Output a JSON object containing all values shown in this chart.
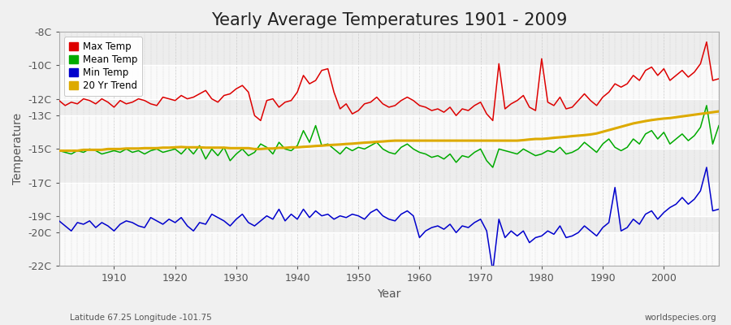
{
  "title": "Yearly Average Temperatures 1901 - 2009",
  "xlabel": "Year",
  "ylabel": "Temperature",
  "lat_lon_text": "Latitude 67.25 Longitude -101.75",
  "watermark": "worldspecies.org",
  "years": [
    1901,
    1902,
    1903,
    1904,
    1905,
    1906,
    1907,
    1908,
    1909,
    1910,
    1911,
    1912,
    1913,
    1914,
    1915,
    1916,
    1917,
    1918,
    1919,
    1920,
    1921,
    1922,
    1923,
    1924,
    1925,
    1926,
    1927,
    1928,
    1929,
    1930,
    1931,
    1932,
    1933,
    1934,
    1935,
    1936,
    1937,
    1938,
    1939,
    1940,
    1941,
    1942,
    1943,
    1944,
    1945,
    1946,
    1947,
    1948,
    1949,
    1950,
    1951,
    1952,
    1953,
    1954,
    1955,
    1956,
    1957,
    1958,
    1959,
    1960,
    1961,
    1962,
    1963,
    1964,
    1965,
    1966,
    1967,
    1968,
    1969,
    1970,
    1971,
    1972,
    1973,
    1974,
    1975,
    1976,
    1977,
    1978,
    1979,
    1980,
    1981,
    1982,
    1983,
    1984,
    1985,
    1986,
    1987,
    1988,
    1989,
    1990,
    1991,
    1992,
    1993,
    1994,
    1995,
    1996,
    1997,
    1998,
    1999,
    2000,
    2001,
    2002,
    2003,
    2004,
    2005,
    2006,
    2007,
    2008,
    2009
  ],
  "max_temp": [
    -12.1,
    -12.4,
    -12.2,
    -12.3,
    -12.0,
    -12.1,
    -12.3,
    -12.0,
    -12.2,
    -12.5,
    -12.1,
    -12.3,
    -12.2,
    -12.0,
    -12.1,
    -12.3,
    -12.4,
    -11.9,
    -12.0,
    -12.1,
    -11.8,
    -12.0,
    -11.9,
    -11.7,
    -11.5,
    -12.0,
    -12.2,
    -11.8,
    -11.7,
    -11.4,
    -11.2,
    -11.6,
    -13.0,
    -13.3,
    -12.1,
    -12.0,
    -12.5,
    -12.2,
    -12.1,
    -11.6,
    -10.6,
    -11.1,
    -10.9,
    -10.3,
    -10.2,
    -11.6,
    -12.6,
    -12.3,
    -12.9,
    -12.7,
    -12.3,
    -12.2,
    -11.9,
    -12.3,
    -12.5,
    -12.4,
    -12.1,
    -11.9,
    -12.1,
    -12.4,
    -12.5,
    -12.7,
    -12.6,
    -12.8,
    -12.5,
    -13.0,
    -12.6,
    -12.7,
    -12.4,
    -12.2,
    -12.9,
    -13.3,
    -9.9,
    -12.6,
    -12.3,
    -12.1,
    -11.8,
    -12.5,
    -12.7,
    -9.6,
    -12.2,
    -12.4,
    -11.9,
    -12.6,
    -12.5,
    -12.1,
    -11.7,
    -12.1,
    -12.4,
    -11.9,
    -11.6,
    -11.1,
    -11.3,
    -11.1,
    -10.6,
    -10.9,
    -10.3,
    -10.1,
    -10.6,
    -10.2,
    -10.9,
    -10.6,
    -10.3,
    -10.7,
    -10.4,
    -9.9,
    -8.6,
    -10.9,
    -10.8
  ],
  "mean_temp": [
    -15.1,
    -15.2,
    -15.3,
    -15.1,
    -15.2,
    -15.0,
    -15.1,
    -15.3,
    -15.2,
    -15.1,
    -15.2,
    -15.0,
    -15.2,
    -15.1,
    -15.3,
    -15.1,
    -15.0,
    -15.2,
    -15.1,
    -15.0,
    -15.3,
    -14.9,
    -15.3,
    -14.8,
    -15.6,
    -15.0,
    -15.4,
    -14.9,
    -15.7,
    -15.3,
    -15.0,
    -15.4,
    -15.2,
    -14.7,
    -14.9,
    -15.3,
    -14.6,
    -15.0,
    -15.1,
    -14.8,
    -13.9,
    -14.6,
    -13.6,
    -14.8,
    -14.7,
    -15.0,
    -15.3,
    -14.9,
    -15.1,
    -14.9,
    -15.0,
    -14.8,
    -14.6,
    -15.0,
    -15.2,
    -15.3,
    -14.9,
    -14.7,
    -15.0,
    -15.2,
    -15.3,
    -15.5,
    -15.4,
    -15.6,
    -15.3,
    -15.8,
    -15.4,
    -15.5,
    -15.2,
    -15.0,
    -15.7,
    -16.1,
    -15.0,
    -15.1,
    -15.2,
    -15.3,
    -15.0,
    -15.2,
    -15.4,
    -15.3,
    -15.1,
    -15.2,
    -14.9,
    -15.3,
    -15.2,
    -15.0,
    -14.6,
    -14.9,
    -15.2,
    -14.7,
    -14.4,
    -14.9,
    -15.1,
    -14.9,
    -14.4,
    -14.7,
    -14.1,
    -13.9,
    -14.4,
    -14.0,
    -14.7,
    -14.4,
    -14.1,
    -14.5,
    -14.2,
    -13.7,
    -12.4,
    -14.7,
    -13.6
  ],
  "min_temp": [
    -19.3,
    -19.6,
    -19.9,
    -19.4,
    -19.5,
    -19.3,
    -19.7,
    -19.4,
    -19.6,
    -19.9,
    -19.5,
    -19.3,
    -19.4,
    -19.6,
    -19.7,
    -19.1,
    -19.3,
    -19.5,
    -19.2,
    -19.4,
    -19.1,
    -19.6,
    -19.9,
    -19.4,
    -19.5,
    -18.9,
    -19.1,
    -19.3,
    -19.6,
    -19.2,
    -18.9,
    -19.4,
    -19.6,
    -19.3,
    -19.0,
    -19.2,
    -18.6,
    -19.3,
    -18.9,
    -19.2,
    -18.6,
    -19.1,
    -18.7,
    -19.0,
    -18.9,
    -19.2,
    -19.0,
    -19.1,
    -18.9,
    -19.0,
    -19.2,
    -18.8,
    -18.6,
    -19.0,
    -19.2,
    -19.3,
    -18.9,
    -18.7,
    -19.0,
    -20.3,
    -19.9,
    -19.7,
    -19.6,
    -19.8,
    -19.5,
    -20.0,
    -19.6,
    -19.7,
    -19.4,
    -19.2,
    -19.9,
    -22.3,
    -19.2,
    -20.3,
    -19.9,
    -20.2,
    -19.9,
    -20.6,
    -20.3,
    -20.2,
    -19.9,
    -20.1,
    -19.6,
    -20.3,
    -20.2,
    -20.0,
    -19.6,
    -19.9,
    -20.2,
    -19.7,
    -19.4,
    -17.3,
    -19.9,
    -19.7,
    -19.2,
    -19.5,
    -18.9,
    -18.7,
    -19.2,
    -18.8,
    -18.5,
    -18.3,
    -17.9,
    -18.3,
    -18.0,
    -17.5,
    -16.1,
    -18.7,
    -18.6
  ],
  "trend_vals": [
    -15.1,
    -15.1,
    -15.1,
    -15.1,
    -15.05,
    -15.05,
    -15.05,
    -15.05,
    -15.0,
    -15.0,
    -15.0,
    -14.97,
    -14.97,
    -14.97,
    -14.95,
    -14.95,
    -14.95,
    -14.92,
    -14.92,
    -14.9,
    -14.88,
    -14.9,
    -14.9,
    -14.9,
    -14.92,
    -14.92,
    -14.92,
    -14.92,
    -14.95,
    -14.95,
    -14.95,
    -14.95,
    -15.0,
    -15.0,
    -14.97,
    -14.97,
    -14.93,
    -14.93,
    -14.9,
    -14.9,
    -14.87,
    -14.85,
    -14.82,
    -14.8,
    -14.77,
    -14.75,
    -14.73,
    -14.7,
    -14.68,
    -14.65,
    -14.62,
    -14.6,
    -14.57,
    -14.55,
    -14.52,
    -14.5,
    -14.5,
    -14.5,
    -14.5,
    -14.5,
    -14.5,
    -14.5,
    -14.5,
    -14.5,
    -14.5,
    -14.5,
    -14.5,
    -14.5,
    -14.5,
    -14.5,
    -14.5,
    -14.5,
    -14.5,
    -14.5,
    -14.5,
    -14.5,
    -14.47,
    -14.43,
    -14.4,
    -14.4,
    -14.37,
    -14.33,
    -14.3,
    -14.27,
    -14.23,
    -14.2,
    -14.17,
    -14.13,
    -14.07,
    -13.97,
    -13.87,
    -13.77,
    -13.67,
    -13.57,
    -13.47,
    -13.4,
    -13.33,
    -13.27,
    -13.22,
    -13.18,
    -13.15,
    -13.1,
    -13.05,
    -13.0,
    -12.95,
    -12.9,
    -12.85,
    -12.8,
    -12.75
  ],
  "colors": {
    "max_temp": "#dd0000",
    "mean_temp": "#00aa00",
    "min_temp": "#0000cc",
    "trend": "#ddaa00",
    "background": "#f0f0f0",
    "plot_bg": "#f4f4f4",
    "vgrid": "#cccccc",
    "hgrid": "#ffffff",
    "axes": "#888888",
    "text": "#555555"
  },
  "ylim": [
    -22,
    -8
  ],
  "xlim": [
    1901,
    2009
  ],
  "yticks": [
    -22,
    -20,
    -19,
    -17,
    -15,
    -13,
    -12,
    -10,
    -8
  ],
  "ytick_labels": [
    "-22C",
    "-20C",
    "-19C",
    "-17C",
    "-15C",
    "-13C",
    "-12C",
    "-10C",
    "-8C"
  ],
  "xticks": [
    1910,
    1920,
    1930,
    1940,
    1950,
    1960,
    1970,
    1980,
    1990,
    2000
  ],
  "title_fontsize": 15,
  "axis_fontsize": 10,
  "tick_fontsize": 9,
  "linewidth": 1.1
}
